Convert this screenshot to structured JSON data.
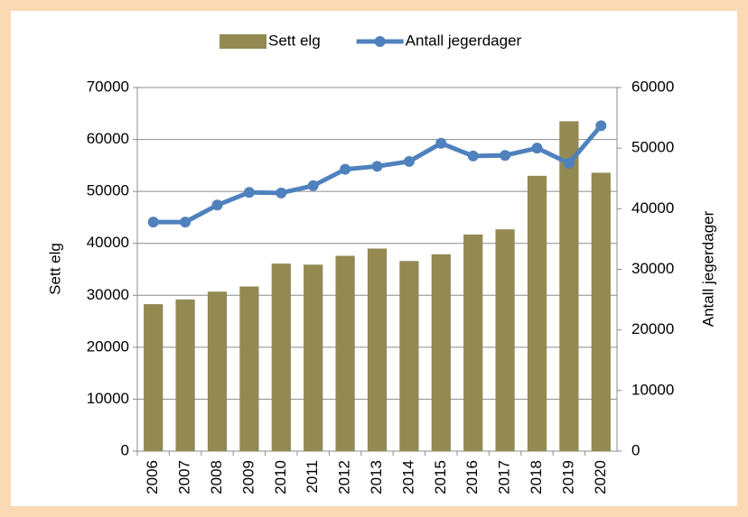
{
  "chart_data": {
    "type": "bar_line",
    "categories": [
      "2006",
      "2007",
      "2008",
      "2009",
      "2010",
      "2011",
      "2012",
      "2013",
      "2014",
      "2015",
      "2016",
      "2017",
      "2018",
      "2019",
      "2020"
    ],
    "series": [
      {
        "name": "Sett elg",
        "type": "bar",
        "color": "#938953",
        "values": [
          28300,
          29200,
          30700,
          31700,
          36100,
          35900,
          37600,
          39000,
          36600,
          37900,
          41700,
          42700,
          53000,
          63500,
          53600
        ]
      },
      {
        "name": "Antall jegerdager",
        "type": "line",
        "axis": "y2",
        "color": "#4f81bd",
        "values": [
          37800,
          37800,
          40600,
          42700,
          42600,
          43800,
          46500,
          47000,
          47800,
          50800,
          48700,
          48800,
          50000,
          47500,
          53700
        ]
      }
    ],
    "y_label": "Sett elg",
    "y2_label": "Antall jegerdager",
    "ylim": [
      0,
      70000
    ],
    "yticks": [
      0,
      10000,
      20000,
      30000,
      40000,
      50000,
      60000,
      70000
    ],
    "y2lim": [
      0,
      60000
    ],
    "y2ticks": [
      0,
      10000,
      20000,
      30000,
      40000,
      50000,
      60000
    ],
    "grid": true,
    "legend": "top"
  }
}
